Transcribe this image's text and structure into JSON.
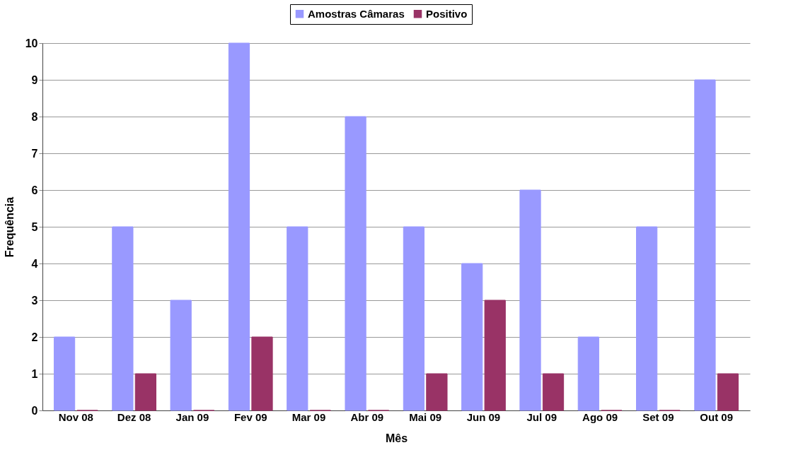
{
  "chart_data": {
    "type": "bar",
    "xlabel": "Mês",
    "ylabel": "Frequência",
    "categories": [
      "Nov 08",
      "Dez 08",
      "Jan 09",
      "Fev 09",
      "Mar 09",
      "Abr 09",
      "Mai 09",
      "Jun 09",
      "Jul 09",
      "Ago 09",
      "Set 09",
      "Out 09"
    ],
    "series": [
      {
        "name": "Amostras Câmaras",
        "color": "#9999ff",
        "values": [
          2,
          5,
          3,
          10,
          5,
          8,
          5,
          4,
          6,
          2,
          5,
          9
        ]
      },
      {
        "name": "Positivo",
        "color": "#993366",
        "values": [
          0,
          1,
          0,
          2,
          0,
          0,
          1,
          3,
          1,
          0,
          0,
          1
        ]
      }
    ],
    "ylim": [
      0,
      10
    ],
    "yticks": [
      0,
      1,
      2,
      3,
      4,
      5,
      6,
      7,
      8,
      9,
      10
    ],
    "grid": "y",
    "legend": "top"
  }
}
